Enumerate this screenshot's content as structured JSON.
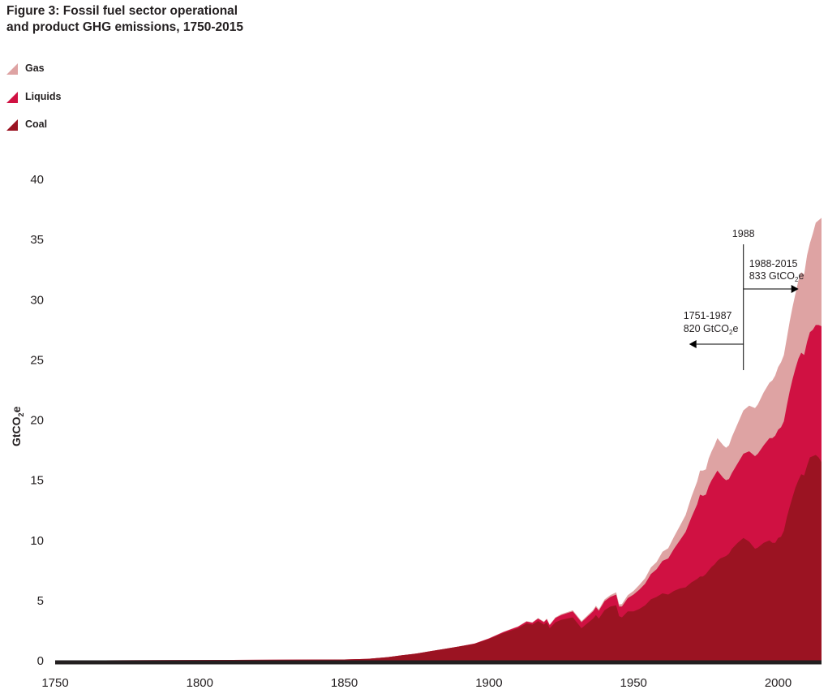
{
  "chart_data": {
    "type": "area",
    "stacked": true,
    "title": "Figure 3: Fossil fuel sector operational and product GHG emissions, 1750-2015",
    "xlabel": "",
    "ylabel": "GtCO2e",
    "ylabel_main": "GtCO",
    "ylabel_sub": "2",
    "ylabel_suffix": "e",
    "xlim": [
      1750,
      2015
    ],
    "ylim": [
      0,
      40
    ],
    "x_ticks": [
      "1750",
      "1800",
      "1850",
      "1900",
      "1950",
      "2000"
    ],
    "y_ticks": [
      "0",
      "5",
      "10",
      "15",
      "20",
      "25",
      "30",
      "35",
      "40"
    ],
    "grid": false,
    "legend_position": "top-left",
    "colors": {
      "gas": "#dea3a3",
      "liquids": "#d01142",
      "coal": "#9b1322",
      "axis": "#231f20"
    },
    "x": [
      1750,
      1850,
      1858,
      1865,
      1870,
      1875,
      1880,
      1885,
      1890,
      1895,
      1900,
      1905,
      1910,
      1913,
      1915,
      1917,
      1919,
      1920,
      1921,
      1923,
      1925,
      1927,
      1929,
      1931,
      1932,
      1934,
      1936,
      1937,
      1938,
      1940,
      1942,
      1944,
      1945,
      1946,
      1948,
      1950,
      1952,
      1954,
      1956,
      1958,
      1960,
      1962,
      1964,
      1966,
      1968,
      1970,
      1972,
      1973,
      1974,
      1975,
      1976,
      1977,
      1978,
      1979,
      1980,
      1981,
      1982,
      1983,
      1984,
      1986,
      1988,
      1990,
      1991,
      1992,
      1993,
      1995,
      1997,
      1998,
      1999,
      2000,
      2001,
      2002,
      2003,
      2004,
      2005,
      2006,
      2007,
      2008,
      2009,
      2010,
      2011,
      2012,
      2013,
      2014,
      2015
    ],
    "series": [
      {
        "name": "Coal",
        "values": [
          0.02,
          0.1,
          0.15,
          0.3,
          0.45,
          0.6,
          0.8,
          1.0,
          1.2,
          1.4,
          1.8,
          2.3,
          2.7,
          3.1,
          3.0,
          3.3,
          3.0,
          3.2,
          2.7,
          3.2,
          3.4,
          3.5,
          3.6,
          3.0,
          2.7,
          3.1,
          3.5,
          3.8,
          3.5,
          4.2,
          4.5,
          4.6,
          3.7,
          3.6,
          4.1,
          4.1,
          4.3,
          4.6,
          5.1,
          5.3,
          5.6,
          5.5,
          5.8,
          6.0,
          6.1,
          6.5,
          6.8,
          7.0,
          7.0,
          7.2,
          7.5,
          7.8,
          8.0,
          8.3,
          8.5,
          8.6,
          8.7,
          8.9,
          9.3,
          9.8,
          10.2,
          9.9,
          9.6,
          9.3,
          9.4,
          9.8,
          10.0,
          9.8,
          9.8,
          10.2,
          10.3,
          10.8,
          11.9,
          12.8,
          13.6,
          14.4,
          15.0,
          15.5,
          15.4,
          16.2,
          16.9,
          17.0,
          17.1,
          16.9,
          16.5
        ]
      },
      {
        "name": "Liquids",
        "values": [
          0,
          0,
          0,
          0,
          0,
          0,
          0,
          0,
          0,
          0.02,
          0.05,
          0.08,
          0.12,
          0.15,
          0.15,
          0.2,
          0.2,
          0.25,
          0.25,
          0.35,
          0.4,
          0.45,
          0.5,
          0.5,
          0.5,
          0.55,
          0.6,
          0.65,
          0.65,
          0.75,
          0.8,
          0.9,
          0.8,
          0.9,
          1.1,
          1.4,
          1.6,
          1.8,
          2.1,
          2.3,
          2.7,
          3.0,
          3.5,
          4.0,
          4.6,
          5.4,
          6.2,
          6.8,
          6.7,
          6.6,
          7.0,
          7.2,
          7.4,
          7.5,
          7.0,
          6.6,
          6.3,
          6.2,
          6.3,
          6.6,
          7.0,
          7.5,
          7.6,
          7.7,
          7.8,
          8.1,
          8.5,
          8.7,
          8.9,
          9.0,
          9.1,
          9.1,
          9.3,
          9.6,
          9.8,
          9.9,
          10.1,
          10.1,
          10.0,
          10.3,
          10.4,
          10.5,
          10.8,
          11.0,
          11.3
        ]
      },
      {
        "name": "Gas",
        "values": [
          0,
          0,
          0,
          0,
          0,
          0,
          0,
          0,
          0,
          0,
          0.01,
          0.02,
          0.03,
          0.04,
          0.04,
          0.05,
          0.05,
          0.05,
          0.05,
          0.06,
          0.07,
          0.08,
          0.09,
          0.09,
          0.09,
          0.1,
          0.11,
          0.12,
          0.12,
          0.14,
          0.16,
          0.18,
          0.18,
          0.2,
          0.25,
          0.3,
          0.4,
          0.45,
          0.55,
          0.6,
          0.75,
          0.85,
          1.0,
          1.2,
          1.4,
          1.7,
          1.9,
          2.0,
          2.1,
          2.1,
          2.3,
          2.4,
          2.5,
          2.7,
          2.7,
          2.7,
          2.7,
          2.8,
          3.0,
          3.3,
          3.6,
          3.8,
          3.9,
          4.0,
          4.1,
          4.4,
          4.6,
          4.8,
          5.0,
          5.2,
          5.4,
          5.5,
          5.6,
          5.8,
          6.0,
          6.2,
          6.5,
          6.7,
          6.7,
          7.2,
          7.4,
          8.0,
          8.5,
          8.7,
          9.0
        ]
      }
    ],
    "annotations": {
      "marker_year": "1988",
      "right_period": "1988-2015",
      "right_value": "833 GtCO",
      "right_value_sub": "2",
      "right_value_suffix": "e",
      "left_period": "1751-1987",
      "left_value": "820 GtCO",
      "left_value_sub": "2",
      "left_value_suffix": "e"
    }
  },
  "legend": [
    {
      "label": "Gas",
      "color": "#dea3a3"
    },
    {
      "label": "Liquids",
      "color": "#d01142"
    },
    {
      "label": "Coal",
      "color": "#9b1322"
    }
  ]
}
